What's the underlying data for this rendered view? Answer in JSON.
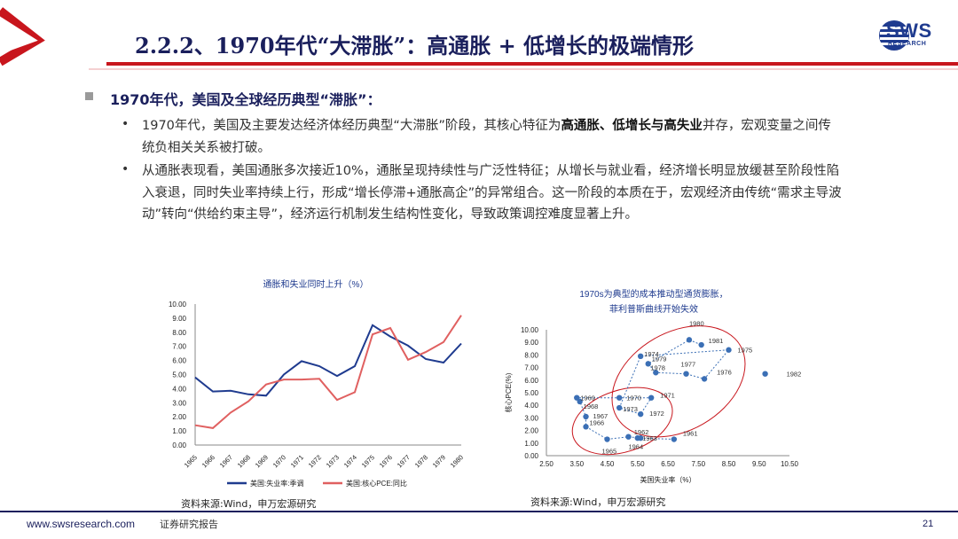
{
  "header": {
    "title": "2.2.2、1970年代“大滞胀”：高通胀 + 低增长的极端情形",
    "logo_text": "SWS",
    "logo_sub": "RESEARCH"
  },
  "section": {
    "heading": "1970年代，美国及全球经历典型“滞胀”：",
    "p1": {
      "a": "1970年代，美国及主要发达经济体经历典型“大滞胀”阶段，其核心特征为",
      "bold": "高通胀、低增长与高失业",
      "b": "并存，宏观变量之间传统负相关关系被打破。"
    },
    "p2": "从通胀表现看，美国通胀多次接近10%，通胀呈现持续性与广泛性特征；从增长与就业看，经济增长明显放缓甚至阶段性陷入衰退，同时失业率持续上行，形成“增长停滞+通胀高企”的异常组合。这一阶段的本质在于，宏观经济由传统“需求主导波动”转向“供给约束主导”，经济运行机制发生结构性变化，导致政策调控难度显著上升。",
    "bullet_char": "•"
  },
  "chart_data": [
    {
      "type": "line",
      "title": "通胀和失业同时上升（%）",
      "x": [
        "1965",
        "1966",
        "1967",
        "1968",
        "1969",
        "1970",
        "1971",
        "1972",
        "1973",
        "1974",
        "1975",
        "1976",
        "1977",
        "1978",
        "1979",
        "1980"
      ],
      "ylim": [
        0,
        10
      ],
      "yticks": [
        "0.00",
        "1.00",
        "2.00",
        "3.00",
        "4.00",
        "5.00",
        "6.00",
        "7.00",
        "8.00",
        "9.00",
        "10.00"
      ],
      "series": [
        {
          "name": "美国:失业率:季调",
          "color": "#1f3b8f",
          "values": [
            4.8,
            3.8,
            3.85,
            3.6,
            3.5,
            5.0,
            5.95,
            5.6,
            4.9,
            5.6,
            8.5,
            7.7,
            7.05,
            6.1,
            5.85,
            7.2
          ]
        },
        {
          "name": "美国:核心PCE:同比",
          "color": "#e06060",
          "values": [
            1.4,
            1.2,
            2.3,
            3.1,
            4.3,
            4.65,
            4.65,
            4.7,
            3.2,
            3.75,
            7.85,
            8.3,
            6.05,
            6.6,
            7.3,
            9.2
          ]
        }
      ],
      "source": "资料来源:Wind，申万宏源研究"
    },
    {
      "type": "scatter",
      "title_line1": "1970s为典型的成本推动型通货膨胀，",
      "title_line2": "菲利普斯曲线开始失效",
      "xlabel": "美国失业率（%）",
      "ylabel": "核心PCE(%)",
      "xlim": [
        2.5,
        10.5
      ],
      "ylim": [
        0,
        10
      ],
      "xticks": [
        "2.50",
        "3.50",
        "4.50",
        "5.50",
        "6.50",
        "7.50",
        "8.50",
        "9.50",
        "10.50"
      ],
      "yticks": [
        "0.00",
        "1.00",
        "2.00",
        "3.00",
        "4.00",
        "5.00",
        "6.00",
        "7.00",
        "8.00",
        "9.00",
        "10.00"
      ],
      "points": [
        {
          "label": "1961",
          "x": 6.7,
          "y": 1.3
        },
        {
          "label": "1962",
          "x": 5.5,
          "y": 1.4
        },
        {
          "label": "1963",
          "x": 5.6,
          "y": 1.4
        },
        {
          "label": "1964",
          "x": 5.2,
          "y": 1.5
        },
        {
          "label": "1965",
          "x": 4.5,
          "y": 1.3
        },
        {
          "label": "1966",
          "x": 3.8,
          "y": 2.3
        },
        {
          "label": "1967",
          "x": 3.8,
          "y": 3.1
        },
        {
          "label": "1968",
          "x": 3.6,
          "y": 4.3
        },
        {
          "label": "1969",
          "x": 3.5,
          "y": 4.6
        },
        {
          "label": "1970",
          "x": 4.9,
          "y": 4.6
        },
        {
          "label": "1971",
          "x": 5.95,
          "y": 4.6
        },
        {
          "label": "1972",
          "x": 5.6,
          "y": 3.3
        },
        {
          "label": "1973",
          "x": 4.9,
          "y": 3.8
        },
        {
          "label": "1974",
          "x": 5.6,
          "y": 7.9
        },
        {
          "label": "1975",
          "x": 8.5,
          "y": 8.4
        },
        {
          "label": "1976",
          "x": 7.7,
          "y": 6.1
        },
        {
          "label": "1977",
          "x": 7.1,
          "y": 6.5
        },
        {
          "label": "1978",
          "x": 6.1,
          "y": 6.6
        },
        {
          "label": "1979",
          "x": 5.85,
          "y": 7.3
        },
        {
          "label": "1980",
          "x": 7.2,
          "y": 9.2
        },
        {
          "label": "1981",
          "x": 7.6,
          "y": 8.8
        },
        {
          "label": "1982",
          "x": 9.7,
          "y": 6.5
        }
      ],
      "source": "资料来源:Wind，申万宏源研究"
    }
  ],
  "footer": {
    "url": "www.swsresearch.com",
    "label": "证券研究报告",
    "page": "21"
  },
  "colors": {
    "accent_red": "#c8161d",
    "navy": "#1a1f5c",
    "unemployment": "#1f3b8f",
    "pce": "#e06060"
  }
}
